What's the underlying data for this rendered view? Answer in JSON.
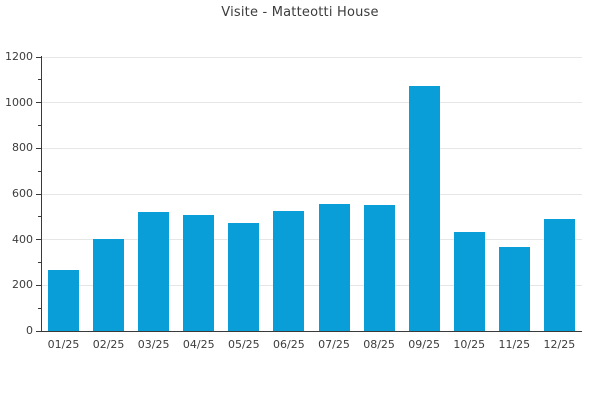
{
  "chart_data": {
    "type": "bar",
    "title": "Visite - Matteotti House",
    "categories": [
      "01/25",
      "02/25",
      "03/25",
      "04/25",
      "05/25",
      "06/25",
      "07/25",
      "08/25",
      "09/25",
      "10/25",
      "11/25",
      "12/25"
    ],
    "values": [
      265,
      405,
      520,
      510,
      475,
      525,
      555,
      550,
      1075,
      435,
      370,
      490
    ],
    "xlabel": "",
    "ylabel": "",
    "ylim": [
      0,
      1200
    ],
    "yticks": [
      0,
      200,
      400,
      600,
      800,
      1000,
      1200
    ],
    "minor_yticks": [
      100,
      300,
      500,
      700,
      900,
      1100
    ],
    "grid": "horizontal-major",
    "legend": "none",
    "colors": {
      "bar": "#0a9ed9",
      "grid": "#e6e6e6",
      "axis": "#3a3a3a",
      "text": "#3d3d3d",
      "title": "#3c3c3c",
      "background": "#ffffff"
    }
  }
}
